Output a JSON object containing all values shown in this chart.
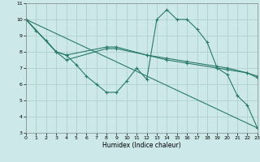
{
  "xlabel": "Humidex (Indice chaleur)",
  "bg_color": "#cce8e8",
  "grid_color": "#aacaca",
  "line_color": "#2a7a6a",
  "xlim": [
    0,
    23
  ],
  "ylim": [
    3,
    11
  ],
  "xticks": [
    0,
    1,
    2,
    3,
    4,
    5,
    6,
    7,
    8,
    9,
    10,
    11,
    12,
    13,
    14,
    15,
    16,
    17,
    18,
    19,
    20,
    21,
    22,
    23
  ],
  "yticks": [
    3,
    4,
    5,
    6,
    7,
    8,
    9,
    10,
    11
  ],
  "line1_x": [
    0,
    1,
    2,
    3,
    4,
    5,
    6,
    7,
    8,
    9,
    10,
    11,
    12,
    13,
    14,
    15,
    16,
    17,
    18,
    19,
    20,
    21,
    22,
    23
  ],
  "line1_y": [
    10.0,
    9.3,
    8.7,
    8.0,
    7.8,
    7.2,
    6.5,
    6.0,
    5.5,
    5.5,
    6.2,
    7.0,
    6.3,
    10.0,
    10.6,
    10.0,
    10.0,
    9.4,
    8.6,
    7.0,
    6.6,
    5.3,
    4.7,
    3.3
  ],
  "line2_x": [
    0,
    3,
    4,
    8,
    9,
    12,
    14,
    16,
    19,
    20,
    22,
    23
  ],
  "line2_y": [
    10.0,
    8.0,
    7.8,
    8.3,
    8.3,
    7.8,
    7.6,
    7.4,
    7.1,
    7.0,
    6.7,
    6.5
  ],
  "line3_x": [
    0,
    3,
    4,
    8,
    9,
    12,
    14,
    16,
    19,
    20,
    22,
    23
  ],
  "line3_y": [
    10.0,
    8.0,
    7.5,
    8.2,
    8.2,
    7.8,
    7.5,
    7.3,
    7.0,
    6.9,
    6.7,
    6.4
  ],
  "line4_x": [
    0,
    23
  ],
  "line4_y": [
    10.0,
    3.3
  ]
}
